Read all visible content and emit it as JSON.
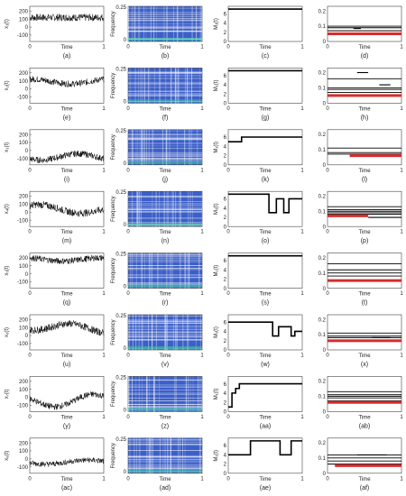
{
  "figure": {
    "rows": [
      {
        "signal_label": "x₁(t)",
        "labels": [
          "(a)",
          "(b)",
          "(c)",
          "(d)"
        ],
        "signal": {
          "offset": 120,
          "amp": 0,
          "trend": 0,
          "phase": 0,
          "noise": 45
        },
        "order": {
          "segments": [
            [
              0,
              1,
              7
            ]
          ]
        },
        "freq": {
          "lines": [
            0.1,
            0.09,
            0.07,
            0.045
          ],
          "red": [
            [
              0.0,
              1.0,
              0.05
            ]
          ],
          "short": [
            [
              0.35,
              0.45,
              0.085
            ]
          ]
        }
      },
      {
        "signal_label": "x₂(t)",
        "labels": [
          "(e)",
          "(f)",
          "(g)",
          "(h)"
        ],
        "signal": {
          "offset": 90,
          "amp": 30,
          "trend": 0,
          "phase": 0.2,
          "noise": 40
        },
        "order": {
          "segments": [
            [
              0,
              1,
              7
            ]
          ]
        },
        "freq": {
          "lines": [
            0.16,
            0.1,
            0.09,
            0.07
          ],
          "red": [
            [
              0.0,
              1.0,
              0.05
            ]
          ],
          "short": [
            [
              0.4,
              0.55,
              0.2
            ],
            [
              0.7,
              0.85,
              0.12
            ]
          ]
        }
      },
      {
        "signal_label": "x₃(t)",
        "labels": [
          "(i)",
          "(j)",
          "(k)",
          "(l)"
        ],
        "signal": {
          "offset": -80,
          "amp": 40,
          "trend": 0,
          "phase": 0.6,
          "noise": 40
        },
        "order": {
          "segments": [
            [
              0,
              0.18,
              5
            ],
            [
              0.18,
              1,
              6
            ]
          ]
        },
        "freq": {
          "lines": [
            0.11,
            0.08,
            0.07
          ],
          "red": [
            [
              0.3,
              1.0,
              0.06
            ]
          ],
          "short": []
        }
      },
      {
        "signal_label": "x₄(t)",
        "labels": [
          "(m)",
          "(n)",
          "(o)",
          "(p)"
        ],
        "signal": {
          "offset": 60,
          "amp": 40,
          "trend": -50,
          "phase": 0.1,
          "noise": 45
        },
        "order": {
          "segments": [
            [
              0,
              0.55,
              7
            ],
            [
              0.55,
              0.65,
              3
            ],
            [
              0.65,
              0.75,
              6
            ],
            [
              0.75,
              0.82,
              3
            ],
            [
              0.82,
              1,
              6
            ]
          ]
        },
        "freq": {
          "lines": [
            0.13,
            0.11,
            0.1,
            0.09,
            0.08
          ],
          "red": [
            [
              0.0,
              0.55,
              0.07
            ]
          ],
          "short": [
            [
              0.55,
              1.0,
              0.06
            ]
          ]
        }
      },
      {
        "signal_label": "x₅(t)",
        "labels": [
          "(q)",
          "(r)",
          "(s)",
          "(t)"
        ],
        "signal": {
          "offset": 180,
          "amp": 20,
          "trend": 0,
          "phase": 0.3,
          "noise": 40
        },
        "order": {
          "segments": [
            [
              0,
              1,
              7
            ]
          ]
        },
        "freq": {
          "lines": [
            0.16,
            0.12,
            0.1,
            0.08
          ],
          "red": [
            [
              0.0,
              1.0,
              0.05
            ]
          ],
          "short": []
        }
      },
      {
        "signal_label": "x₆(t)",
        "labels": [
          "(u)",
          "(v)",
          "(w)",
          "(x)"
        ],
        "signal": {
          "offset": 120,
          "amp": 50,
          "trend": -40,
          "phase": 0.7,
          "noise": 45
        },
        "order": {
          "segments": [
            [
              0,
              0.6,
              6
            ],
            [
              0.6,
              0.68,
              3
            ],
            [
              0.68,
              0.85,
              5
            ],
            [
              0.85,
              0.9,
              3
            ],
            [
              0.9,
              1,
              4
            ]
          ]
        },
        "freq": {
          "lines": [
            0.11,
            0.09,
            0.08
          ],
          "red": [
            [
              0.0,
              1.0,
              0.06
            ]
          ],
          "short": [
            [
              0.6,
              0.85,
              0.08
            ]
          ]
        }
      },
      {
        "signal_label": "x₇(t)",
        "labels": [
          "(y)",
          "(z)",
          "(aa)",
          "(ab)"
        ],
        "signal": {
          "offset": -60,
          "amp": 70,
          "trend": 30,
          "phase": 0.4,
          "noise": 40
        },
        "order": {
          "segments": [
            [
              0,
              0.05,
              1
            ],
            [
              0.05,
              0.1,
              4
            ],
            [
              0.1,
              0.15,
              5
            ],
            [
              0.15,
              1,
              6
            ]
          ]
        },
        "freq": {
          "lines": [
            0.13,
            0.11,
            0.1,
            0.09,
            0.07
          ],
          "red": [
            [
              0.0,
              1.0,
              0.06
            ]
          ],
          "short": []
        }
      },
      {
        "signal_label": "x₈(t)",
        "labels": [
          "(ac)",
          "(ad)",
          "(ae)",
          "(af)"
        ],
        "signal": {
          "offset": -50,
          "amp": 20,
          "trend": 20,
          "phase": 0.5,
          "noise": 35
        },
        "order": {
          "segments": [
            [
              0,
              0.3,
              4
            ],
            [
              0.3,
              0.7,
              7
            ],
            [
              0.7,
              0.85,
              4
            ],
            [
              0.85,
              1,
              7
            ]
          ]
        },
        "freq": {
          "lines": [
            0.12,
            0.1,
            0.08,
            0.06
          ],
          "red": [
            [
              0.1,
              1.0,
              0.05
            ]
          ],
          "short": [
            [
              0.4,
              0.8,
              0.12
            ]
          ]
        }
      }
    ]
  },
  "axes": {
    "time_label": "Time",
    "freq_label": "Frequency",
    "order_label": "M₁(t)",
    "signal_yticks": [
      "200",
      "100",
      "0",
      "-100"
    ],
    "signal_ytick_values": [
      200,
      100,
      0,
      -100
    ],
    "signal_ylim": [
      -180,
      260
    ],
    "time_ticks": [
      "0",
      "1"
    ],
    "spec_yticks": [
      "0",
      "0.25"
    ],
    "spec_ylim": [
      0,
      0.25
    ],
    "order_yticks": [
      "0",
      "2",
      "4",
      "6"
    ],
    "order_ylim": [
      0,
      7.6
    ],
    "freq_yticks": [
      "0",
      "0.1",
      "0.2"
    ],
    "freq_ylim": [
      0,
      0.23
    ]
  },
  "colors": {
    "trace": "#000000",
    "spectrum_bg": "#3c5fc8",
    "spectrum_line": "#ffffff",
    "spectrum_hot": "#3ecfa0",
    "red_track": "#d62c2c"
  },
  "chart_data": [
    {
      "type": "line",
      "title": "",
      "xlabel": "Time",
      "ylabel": "x₁(t)",
      "xlim": [
        0,
        1
      ],
      "ylim": [
        -180,
        260
      ],
      "description_values": {
        "level": 120
      }
    },
    {
      "type": "heatmap",
      "title": "",
      "xlabel": "Time",
      "ylabel": "Frequency",
      "xlim": [
        0,
        1
      ],
      "ylim": [
        0,
        0.25
      ]
    },
    {
      "type": "line",
      "title": "",
      "xlabel": "Time",
      "ylabel": "M₁(t)",
      "xlim": [
        0,
        1
      ],
      "ylim": [
        0,
        7.6
      ]
    },
    {
      "type": "scatter",
      "title": "",
      "xlabel": "Time",
      "ylabel": "",
      "xlim": [
        0,
        1
      ],
      "ylim": [
        0,
        0.23
      ]
    }
  ]
}
